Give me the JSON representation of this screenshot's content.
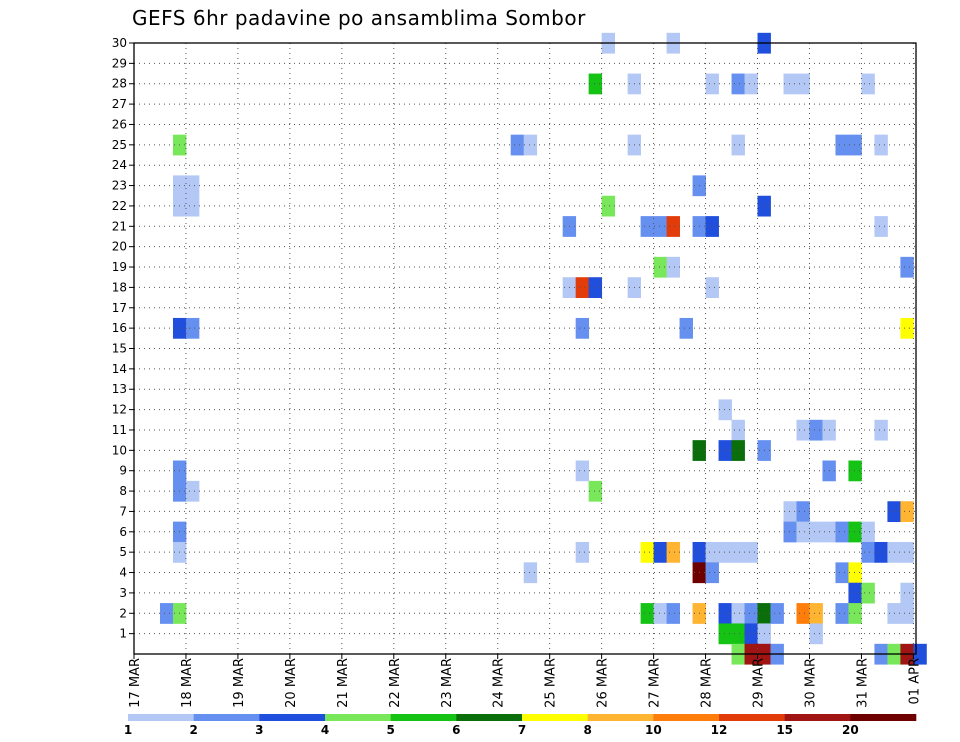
{
  "chart_data": {
    "type": "heatmap",
    "title": "GEFS 6hr padavine po ansamblima Sombor",
    "xlabel": "",
    "ylabel": "",
    "x_labels": [
      "17 MAR",
      "18 MAR",
      "19 MAR",
      "20 MAR",
      "21 MAR",
      "22 MAR",
      "23 MAR",
      "24 MAR",
      "25 MAR",
      "26 MAR",
      "27 MAR",
      "28 MAR",
      "29 MAR",
      "30 MAR",
      "31 MAR",
      "01 APR"
    ],
    "x_range_days": [
      0,
      15.05
    ],
    "y_labels": [
      1,
      2,
      3,
      4,
      5,
      6,
      7,
      8,
      9,
      10,
      11,
      12,
      13,
      14,
      15,
      16,
      17,
      18,
      19,
      20,
      21,
      22,
      23,
      24,
      25,
      26,
      27,
      28,
      29,
      30
    ],
    "y_range": [
      0,
      30
    ],
    "grid": true,
    "legend": {
      "position": "bottom",
      "labels": [
        "1",
        "2",
        "3",
        "4",
        "5",
        "6",
        "7",
        "8",
        "10",
        "12",
        "15",
        "20"
      ],
      "colors": [
        "#b4c8f5",
        "#6690f0",
        "#1f4fdc",
        "#78e85a",
        "#14c314",
        "#0a6e0a",
        "#ffff00",
        "#ffb432",
        "#ff7d0a",
        "#e13c0a",
        "#a01414",
        "#6e0000"
      ]
    },
    "cells": [
      {
        "m": 30,
        "t": 36,
        "c": 0
      },
      {
        "m": 30,
        "t": 41,
        "c": 0
      },
      {
        "m": 30,
        "t": 48,
        "c": 2
      },
      {
        "m": 28,
        "t": 35,
        "c": 4
      },
      {
        "m": 28,
        "t": 38,
        "c": 0
      },
      {
        "m": 28,
        "t": 44,
        "c": 0
      },
      {
        "m": 28,
        "t": 46,
        "c": 1
      },
      {
        "m": 28,
        "t": 47,
        "c": 0
      },
      {
        "m": 28,
        "t": 50,
        "c": 0
      },
      {
        "m": 28,
        "t": 51,
        "c": 0
      },
      {
        "m": 28,
        "t": 56,
        "c": 0
      },
      {
        "m": 25,
        "t": 3,
        "c": 3
      },
      {
        "m": 25,
        "t": 29,
        "c": 1
      },
      {
        "m": 25,
        "t": 30,
        "c": 0
      },
      {
        "m": 25,
        "t": 38,
        "c": 0
      },
      {
        "m": 25,
        "t": 46,
        "c": 0
      },
      {
        "m": 25,
        "t": 54,
        "c": 1
      },
      {
        "m": 25,
        "t": 55,
        "c": 1
      },
      {
        "m": 25,
        "t": 57,
        "c": 0
      },
      {
        "m": 23,
        "t": 3,
        "c": 0
      },
      {
        "m": 23,
        "t": 4,
        "c": 0
      },
      {
        "m": 23,
        "t": 43,
        "c": 1
      },
      {
        "m": 22,
        "t": 3,
        "c": 0
      },
      {
        "m": 22,
        "t": 4,
        "c": 0
      },
      {
        "m": 22,
        "t": 36,
        "c": 3
      },
      {
        "m": 22,
        "t": 48,
        "c": 2
      },
      {
        "m": 21,
        "t": 33,
        "c": 1
      },
      {
        "m": 21,
        "t": 39,
        "c": 1
      },
      {
        "m": 21,
        "t": 40,
        "c": 1
      },
      {
        "m": 21,
        "t": 41,
        "c": 9
      },
      {
        "m": 21,
        "t": 43,
        "c": 1
      },
      {
        "m": 21,
        "t": 44,
        "c": 2
      },
      {
        "m": 21,
        "t": 57,
        "c": 0
      },
      {
        "m": 19,
        "t": 40,
        "c": 3
      },
      {
        "m": 19,
        "t": 41,
        "c": 0
      },
      {
        "m": 19,
        "t": 59,
        "c": 1
      },
      {
        "m": 18,
        "t": 33,
        "c": 0
      },
      {
        "m": 18,
        "t": 34,
        "c": 9
      },
      {
        "m": 18,
        "t": 35,
        "c": 2
      },
      {
        "m": 18,
        "t": 38,
        "c": 0
      },
      {
        "m": 18,
        "t": 44,
        "c": 0
      },
      {
        "m": 16,
        "t": 3,
        "c": 2
      },
      {
        "m": 16,
        "t": 4,
        "c": 1
      },
      {
        "m": 16,
        "t": 34,
        "c": 1
      },
      {
        "m": 16,
        "t": 42,
        "c": 1
      },
      {
        "m": 16,
        "t": 59,
        "c": 6
      },
      {
        "m": 12,
        "t": 45,
        "c": 0
      },
      {
        "m": 11,
        "t": 46,
        "c": 0
      },
      {
        "m": 11,
        "t": 51,
        "c": 0
      },
      {
        "m": 11,
        "t": 52,
        "c": 1
      },
      {
        "m": 11,
        "t": 53,
        "c": 0
      },
      {
        "m": 11,
        "t": 57,
        "c": 0
      },
      {
        "m": 10,
        "t": 43,
        "c": 5
      },
      {
        "m": 10,
        "t": 45,
        "c": 2
      },
      {
        "m": 10,
        "t": 46,
        "c": 5
      },
      {
        "m": 10,
        "t": 48,
        "c": 1
      },
      {
        "m": 9,
        "t": 3,
        "c": 1
      },
      {
        "m": 9,
        "t": 34,
        "c": 0
      },
      {
        "m": 9,
        "t": 53,
        "c": 1
      },
      {
        "m": 9,
        "t": 55,
        "c": 4
      },
      {
        "m": 8,
        "t": 3,
        "c": 1
      },
      {
        "m": 8,
        "t": 4,
        "c": 0
      },
      {
        "m": 8,
        "t": 35,
        "c": 3
      },
      {
        "m": 7,
        "t": 50,
        "c": 0
      },
      {
        "m": 7,
        "t": 51,
        "c": 1
      },
      {
        "m": 7,
        "t": 58,
        "c": 2
      },
      {
        "m": 7,
        "t": 59,
        "c": 7
      },
      {
        "m": 6,
        "t": 3,
        "c": 1
      },
      {
        "m": 6,
        "t": 50,
        "c": 1
      },
      {
        "m": 6,
        "t": 51,
        "c": 0
      },
      {
        "m": 6,
        "t": 52,
        "c": 0
      },
      {
        "m": 6,
        "t": 53,
        "c": 0
      },
      {
        "m": 6,
        "t": 54,
        "c": 1
      },
      {
        "m": 6,
        "t": 55,
        "c": 4
      },
      {
        "m": 6,
        "t": 56,
        "c": 0
      },
      {
        "m": 5,
        "t": 3,
        "c": 0
      },
      {
        "m": 5,
        "t": 34,
        "c": 0
      },
      {
        "m": 5,
        "t": 39,
        "c": 6
      },
      {
        "m": 5,
        "t": 40,
        "c": 2
      },
      {
        "m": 5,
        "t": 41,
        "c": 7
      },
      {
        "m": 5,
        "t": 43,
        "c": 2
      },
      {
        "m": 5,
        "t": 44,
        "c": 0
      },
      {
        "m": 5,
        "t": 45,
        "c": 0
      },
      {
        "m": 5,
        "t": 46,
        "c": 0
      },
      {
        "m": 5,
        "t": 47,
        "c": 0
      },
      {
        "m": 5,
        "t": 56,
        "c": 1
      },
      {
        "m": 5,
        "t": 57,
        "c": 2
      },
      {
        "m": 5,
        "t": 58,
        "c": 0
      },
      {
        "m": 5,
        "t": 59,
        "c": 0
      },
      {
        "m": 4,
        "t": 30,
        "c": 0
      },
      {
        "m": 4,
        "t": 43,
        "c": 11
      },
      {
        "m": 4,
        "t": 44,
        "c": 1
      },
      {
        "m": 4,
        "t": 54,
        "c": 1
      },
      {
        "m": 4,
        "t": 55,
        "c": 6
      },
      {
        "m": 3,
        "t": 55,
        "c": 2
      },
      {
        "m": 3,
        "t": 56,
        "c": 3
      },
      {
        "m": 3,
        "t": 59,
        "c": 0
      },
      {
        "m": 2,
        "t": 2,
        "c": 1
      },
      {
        "m": 2,
        "t": 3,
        "c": 3
      },
      {
        "m": 2,
        "t": 39,
        "c": 4
      },
      {
        "m": 2,
        "t": 40,
        "c": 0
      },
      {
        "m": 2,
        "t": 41,
        "c": 1
      },
      {
        "m": 2,
        "t": 43,
        "c": 7
      },
      {
        "m": 2,
        "t": 45,
        "c": 2
      },
      {
        "m": 2,
        "t": 46,
        "c": 0
      },
      {
        "m": 2,
        "t": 47,
        "c": 1
      },
      {
        "m": 2,
        "t": 48,
        "c": 5
      },
      {
        "m": 2,
        "t": 49,
        "c": 1
      },
      {
        "m": 2,
        "t": 51,
        "c": 8
      },
      {
        "m": 2,
        "t": 52,
        "c": 7
      },
      {
        "m": 2,
        "t": 54,
        "c": 1
      },
      {
        "m": 2,
        "t": 55,
        "c": 3
      },
      {
        "m": 2,
        "t": 58,
        "c": 0
      },
      {
        "m": 2,
        "t": 59,
        "c": 0
      },
      {
        "m": 1,
        "t": 45,
        "c": 4
      },
      {
        "m": 1,
        "t": 46,
        "c": 4
      },
      {
        "m": 1,
        "t": 47,
        "c": 2
      },
      {
        "m": 1,
        "t": 48,
        "c": 0
      },
      {
        "m": 1,
        "t": 52,
        "c": 0
      },
      {
        "m": 0,
        "t": 46,
        "c": 3
      },
      {
        "m": 0,
        "t": 47,
        "c": 10
      },
      {
        "m": 0,
        "t": 48,
        "c": 10
      },
      {
        "m": 0,
        "t": 49,
        "c": 1
      },
      {
        "m": 0,
        "t": 57,
        "c": 1
      },
      {
        "m": 0,
        "t": 58,
        "c": 3
      },
      {
        "m": 0,
        "t": 59,
        "c": 10
      },
      {
        "m": 0,
        "t": 60,
        "c": 2
      }
    ]
  }
}
